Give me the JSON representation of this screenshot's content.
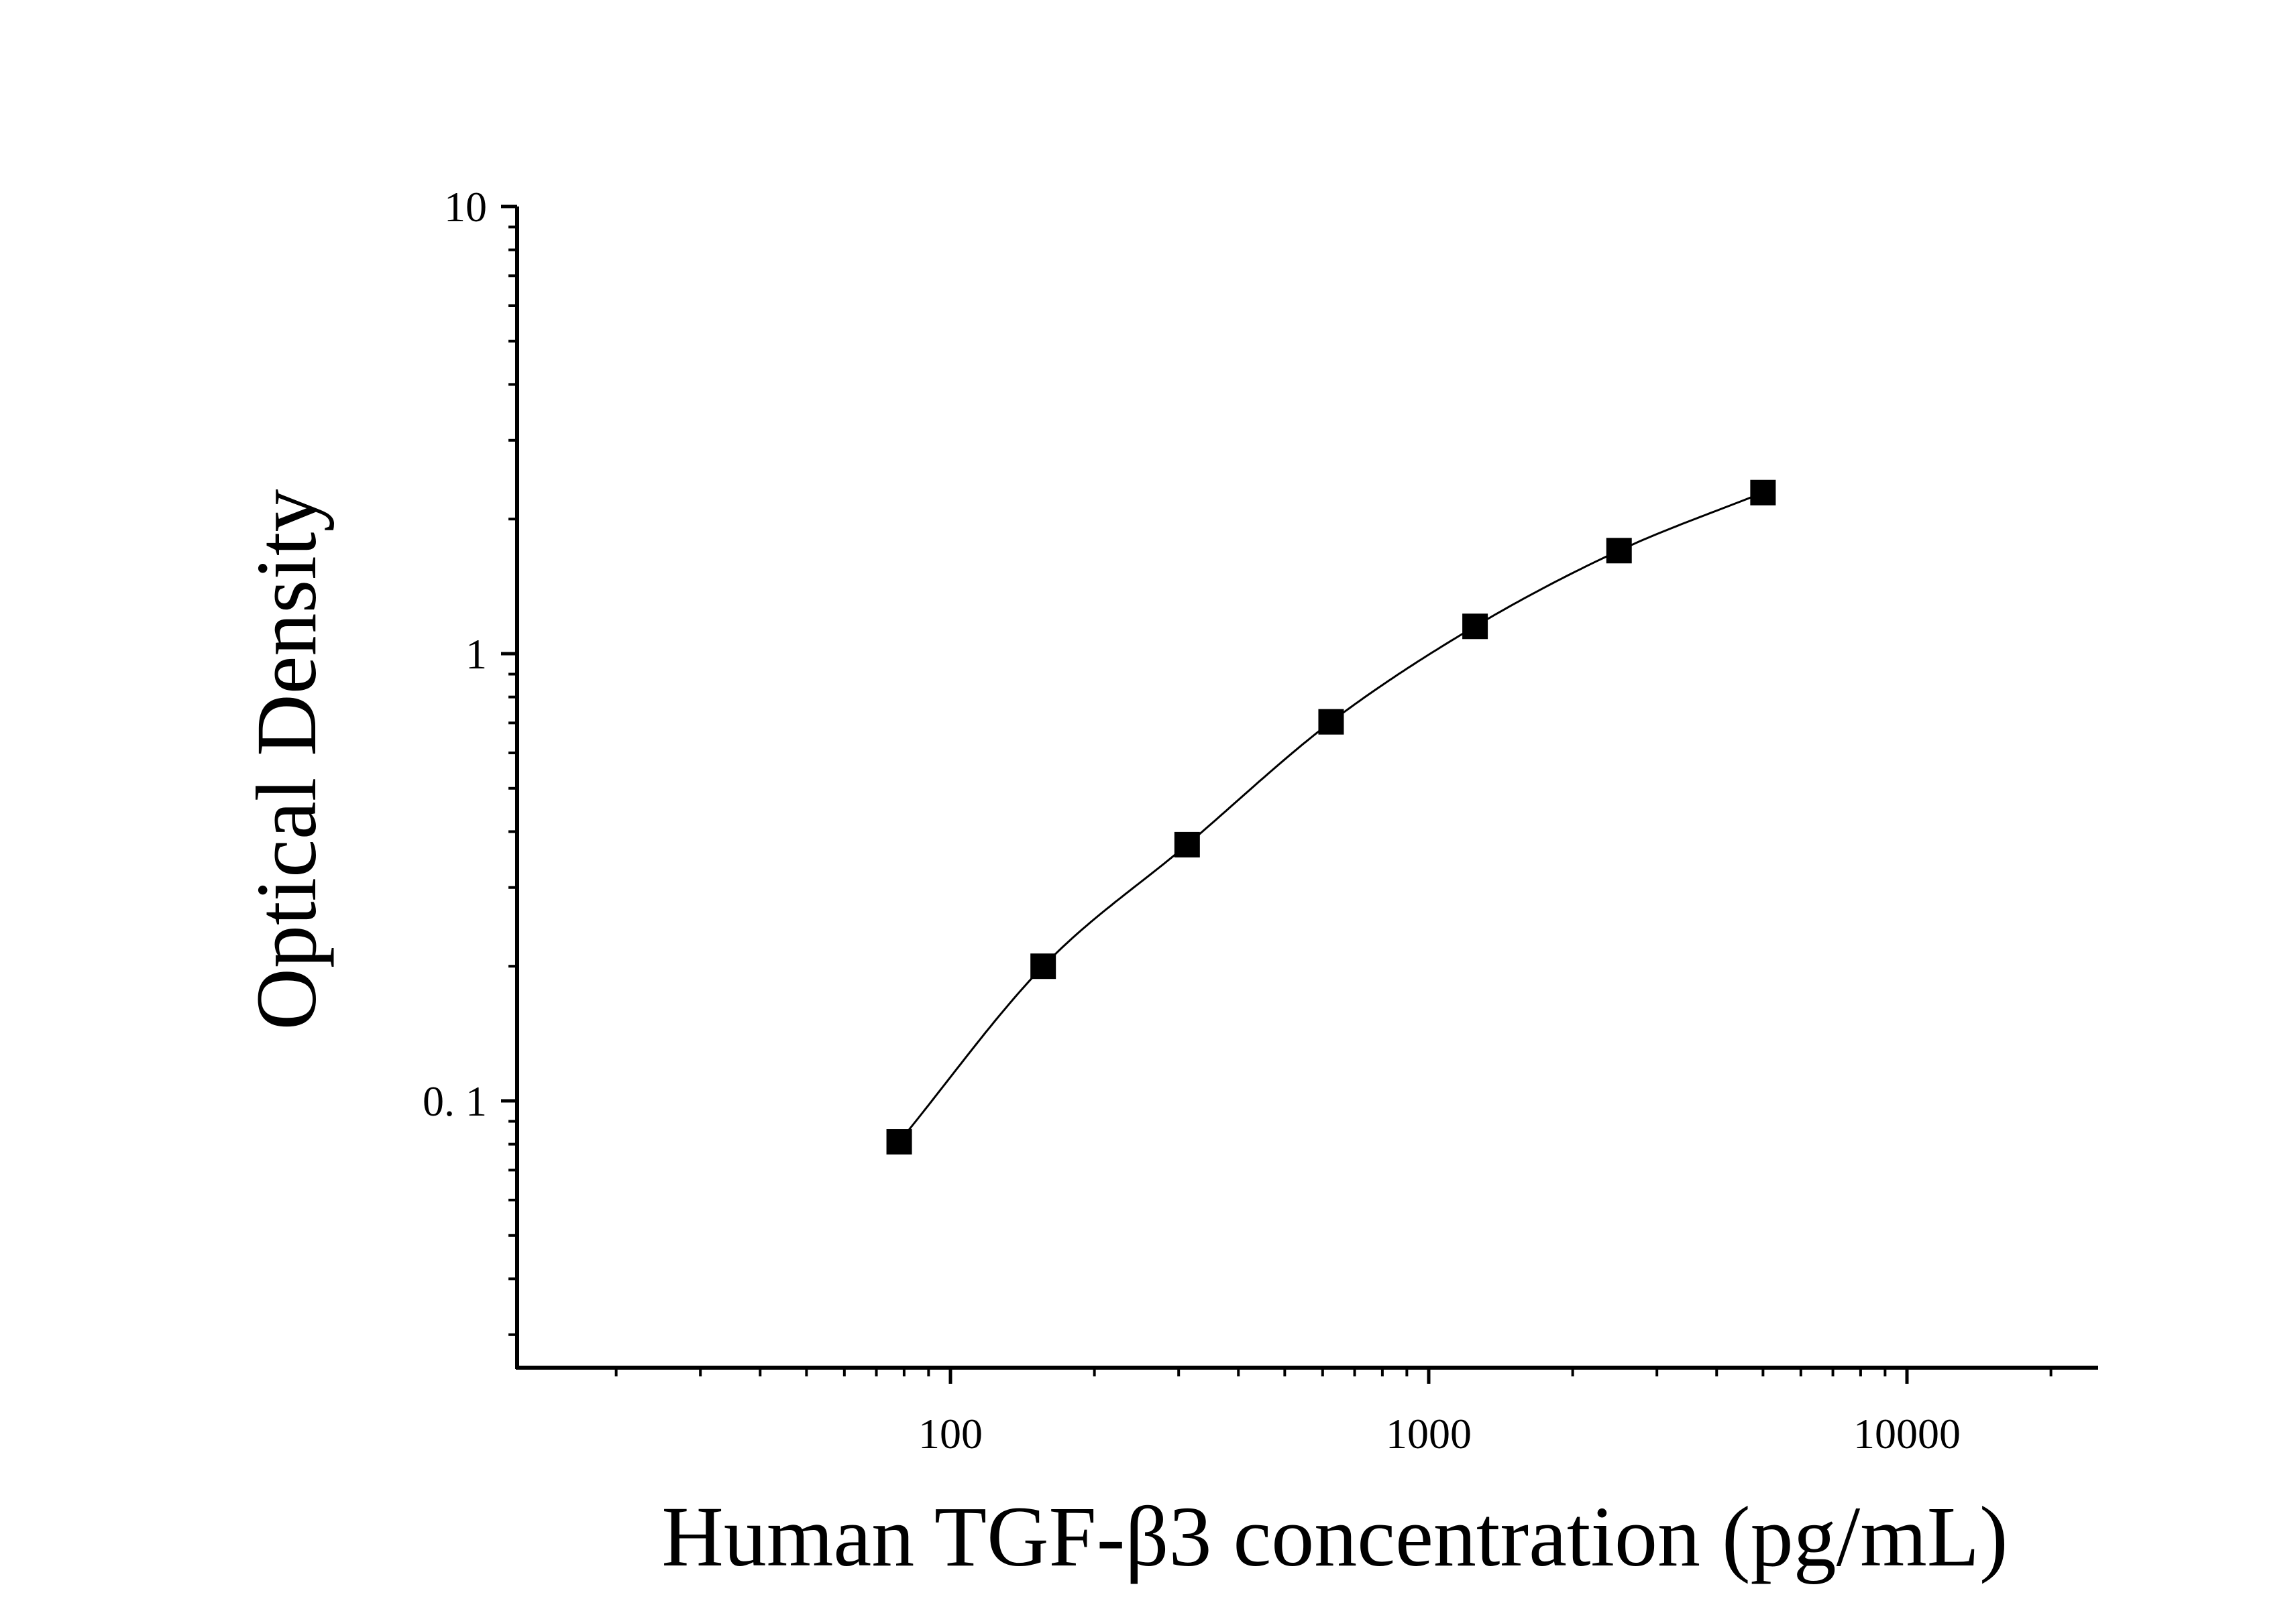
{
  "chart_data": {
    "type": "scatter",
    "title": "",
    "xlabel": "Human TGF-β3 concentration (pg/mL)",
    "ylabel": "Optical Density",
    "x_scale": "log",
    "y_scale": "log",
    "xlim": [
      12,
      25000
    ],
    "ylim": [
      0.026,
      10
    ],
    "x_ticks": [
      {
        "value": 100,
        "label": "100"
      },
      {
        "value": 1000,
        "label": "1000"
      },
      {
        "value": 10000,
        "label": "10000"
      }
    ],
    "y_ticks": [
      {
        "value": 0.1,
        "label": "0. 1"
      },
      {
        "value": 1,
        "label": "1"
      },
      {
        "value": 10,
        "label": "10"
      }
    ],
    "grid": false,
    "legend": false,
    "marker": "square",
    "fit_curve": true,
    "colors": {
      "marker": "#000000",
      "curve": "#000000",
      "axis": "#000000"
    },
    "series": [
      {
        "x": [
          78.125,
          156.25,
          312.5,
          625,
          1250,
          2500,
          5000
        ],
        "y": [
          0.081,
          0.2,
          0.374,
          0.704,
          1.151,
          1.7,
          2.292
        ]
      }
    ]
  }
}
